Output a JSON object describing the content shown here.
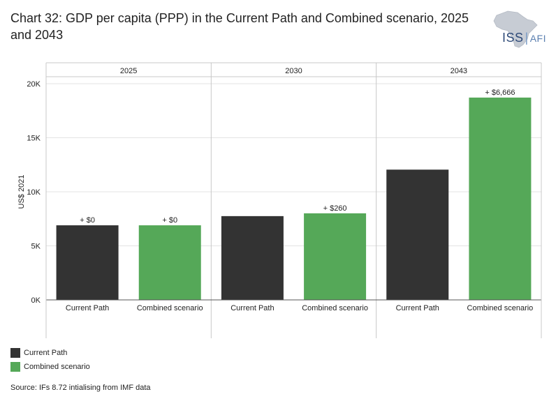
{
  "title": "Chart 32: GDP per capita (PPP) in the Current Path and Combined scenario, 2025 and 2043",
  "logo": {
    "main": "ISS",
    "suffix": "AFI",
    "icon": "africa-map-icon"
  },
  "colors": {
    "current_path": "#333333",
    "combined": "#55a858",
    "grid": "#e3e3e3",
    "frame": "#c8c8c8"
  },
  "chart_data": {
    "type": "bar",
    "ylabel": "US$ 2021",
    "ylim": [
      0,
      20000
    ],
    "yticks": [
      0,
      5000,
      10000,
      15000,
      20000
    ],
    "ytick_labels": [
      "0K",
      "5K",
      "10K",
      "15K",
      "20K"
    ],
    "grid": true,
    "panels": [
      {
        "year": "2025",
        "bars": [
          {
            "category": "Current Path",
            "value": 6900,
            "label": "+ $0"
          },
          {
            "category": "Combined scenario",
            "value": 6900,
            "label": "+ $0"
          }
        ]
      },
      {
        "year": "2030",
        "bars": [
          {
            "category": "Current Path",
            "value": 7750,
            "label": ""
          },
          {
            "category": "Combined scenario",
            "value": 8010,
            "label": "+ $260"
          }
        ]
      },
      {
        "year": "2043",
        "bars": [
          {
            "category": "Current Path",
            "value": 12050,
            "label": ""
          },
          {
            "category": "Combined scenario",
            "value": 18716,
            "label": "+ $6,666"
          }
        ]
      }
    ],
    "legend": [
      "Current Path",
      "Combined scenario"
    ],
    "legend_position": "bottom-left"
  },
  "source": "Source: IFs 8.72 intialising from IMF data"
}
